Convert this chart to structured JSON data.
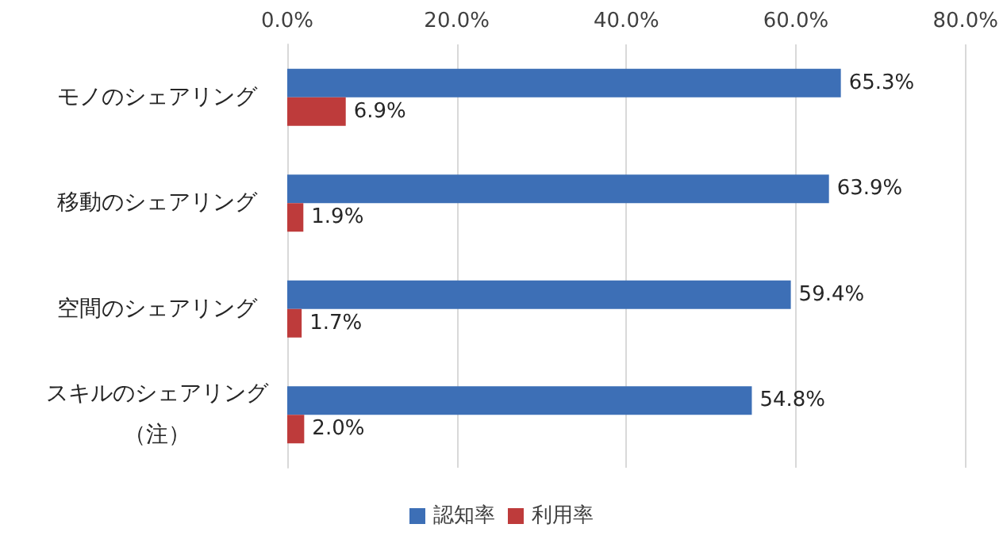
{
  "chart_data": {
    "type": "bar",
    "orientation": "horizontal",
    "categories": [
      "モノのシェアリング",
      "移動のシェアリング",
      "空間のシェアリング",
      "スキルのシェアリング（注）"
    ],
    "series": [
      {
        "name": "認知率",
        "color": "#3d6fb6",
        "values": [
          65.3,
          63.9,
          59.4,
          54.8
        ],
        "value_labels": [
          "65.3%",
          "63.9%",
          "59.4%",
          "54.8%"
        ]
      },
      {
        "name": "利用率",
        "color": "#be3b3b",
        "values": [
          6.9,
          1.9,
          1.7,
          2.0
        ],
        "value_labels": [
          "6.9%",
          "1.9%",
          "1.7%",
          "2.0%"
        ]
      }
    ],
    "xlim": [
      0,
      80
    ],
    "xticks": [
      {
        "value": 0,
        "label": "0.0%"
      },
      {
        "value": 20,
        "label": "20.0%"
      },
      {
        "value": 40,
        "label": "40.0%"
      },
      {
        "value": 60,
        "label": "60.0%"
      },
      {
        "value": 80,
        "label": "80.0%"
      }
    ],
    "grid": "x",
    "legend": "bottom"
  }
}
